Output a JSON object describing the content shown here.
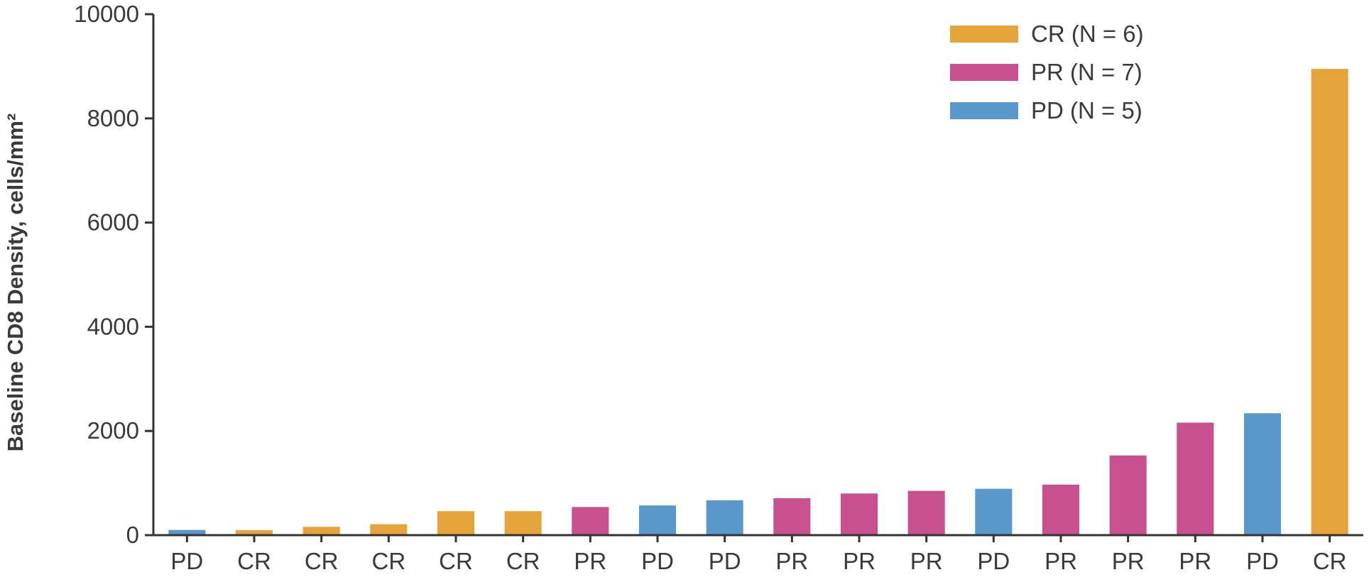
{
  "chart_data": {
    "type": "bar",
    "title": "",
    "xlabel": "",
    "ylabel": "Baseline CD8 Density, cells/mm²",
    "ylim": [
      0,
      10000
    ],
    "yticks": [
      0,
      2000,
      4000,
      6000,
      8000,
      10000
    ],
    "grid": false,
    "legend_position": "top-right",
    "legend": [
      {
        "label": "CR (N = 6)",
        "group": "CR",
        "color": "#E5A33A"
      },
      {
        "label": "PR (N = 7)",
        "group": "PR",
        "color": "#C9508E"
      },
      {
        "label": "PD (N = 5)",
        "group": "PD",
        "color": "#5A98CB"
      }
    ],
    "categories": [
      "PD",
      "CR",
      "CR",
      "CR",
      "CR",
      "CR",
      "PR",
      "PD",
      "PD",
      "PR",
      "PR",
      "PR",
      "PD",
      "PR",
      "PR",
      "PR",
      "PD",
      "CR"
    ],
    "values": [
      100,
      95,
      160,
      210,
      460,
      460,
      540,
      570,
      670,
      710,
      800,
      850,
      890,
      970,
      1530,
      2160,
      2340,
      8950
    ]
  }
}
